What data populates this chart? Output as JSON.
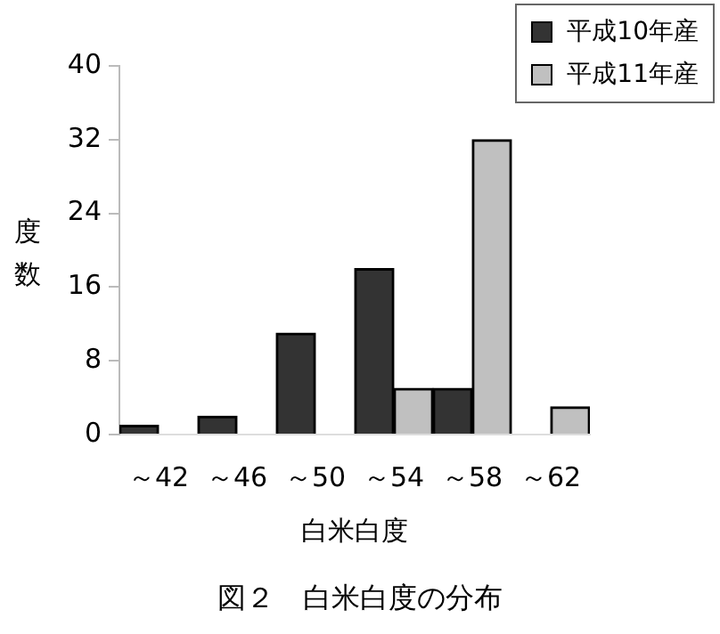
{
  "chart_data": {
    "type": "bar",
    "title": "図２　白米白度の分布",
    "xlabel": "白米白度",
    "ylabel": "度数",
    "categories": [
      "～42",
      "～46",
      "～50",
      "～54",
      "～58",
      "～62"
    ],
    "series": [
      {
        "name": "平成10年産",
        "color": "#333333",
        "values": [
          1,
          2,
          11,
          18,
          5,
          null
        ]
      },
      {
        "name": "平成11年産",
        "color": "#c0c0c0",
        "values": [
          null,
          null,
          null,
          5,
          32,
          3
        ]
      }
    ],
    "ylim": [
      0,
      40
    ],
    "yticks": [
      0,
      8,
      16,
      24,
      32,
      40
    ],
    "grid": false,
    "legend": "top right"
  }
}
